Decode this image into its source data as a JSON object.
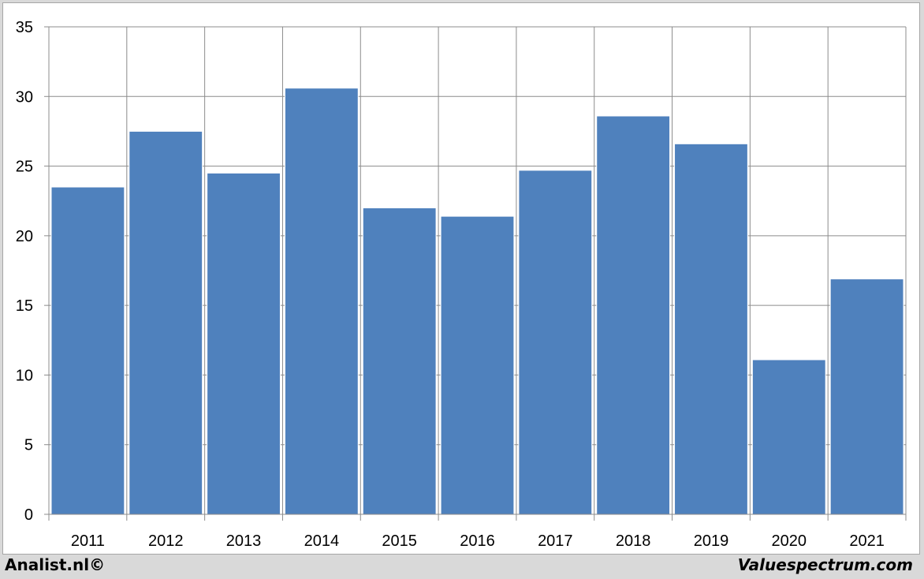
{
  "chart_data": {
    "type": "bar",
    "title": "",
    "xlabel": "",
    "ylabel": "",
    "categories": [
      "2011",
      "2012",
      "2013",
      "2014",
      "2015",
      "2016",
      "2017",
      "2018",
      "2019",
      "2020",
      "2021"
    ],
    "values": [
      23.5,
      27.5,
      24.5,
      30.6,
      22.0,
      21.4,
      24.7,
      28.6,
      26.6,
      11.1,
      16.9
    ],
    "ylim": [
      0,
      35
    ],
    "yticks": [
      0,
      5,
      10,
      15,
      20,
      25,
      30,
      35
    ],
    "grid": true,
    "legend": "none",
    "bar_color": "#4f81bd"
  },
  "footer": {
    "left_text": "Analist.nl©",
    "right_text": "Valuespectrum.com"
  }
}
